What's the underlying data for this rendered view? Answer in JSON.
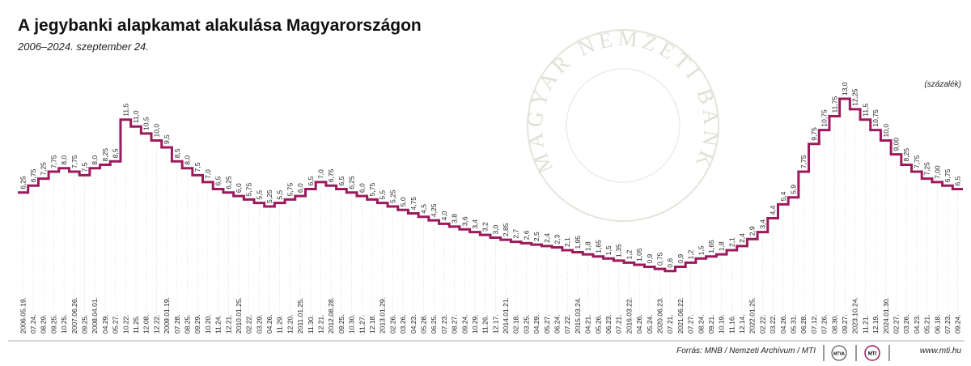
{
  "title": "A jegybanki alapkamat alakulása Magyarországon",
  "subtitle": "2006–2024. szeptember 24.",
  "unit": "(százalék)",
  "watermark": "MAGYAR NEMZETI BANK",
  "source": "Forrás: MNB / Nemzeti Archívum / MTI",
  "logos": [
    "MTVA",
    "MTI"
  ],
  "website": "www.mti.hu",
  "chart_data": {
    "type": "step",
    "color": "#9c1a5c",
    "categories": [
      "2006.05.19.",
      "07.24.",
      "08.29.",
      "09.25.",
      "10.25.",
      "2007.06.26.",
      "09.25.",
      "2008.04.01.",
      "04.29.",
      "05.27.",
      "10.22.",
      "11.25.",
      "12.08.",
      "12.22.",
      "2009.01.19.",
      "07.28.",
      "08.25.",
      "09.29.",
      "10.20.",
      "11.24.",
      "12.21.",
      "2010.01.25.",
      "02.22.",
      "03.29.",
      "04.26.",
      "11.29.",
      "12.20.",
      "2011.01.25.",
      "11.30.",
      "12.21.",
      "2012.08.28.",
      "09.25.",
      "10.30.",
      "11.27.",
      "12.18.",
      "2013.01.29.",
      "02.26.",
      "03.26.",
      "04.23.",
      "05.28.",
      "06.25.",
      "07.23.",
      "08.27.",
      "09.24.",
      "10.29.",
      "11.26.",
      "12.17.",
      "2014.01.21.",
      "02.18.",
      "03.25.",
      "04.29.",
      "05.27.",
      "06.24.",
      "07.22.",
      "2015.03.24.",
      "04.21.",
      "05.26.",
      "06.23.",
      "07.21.",
      "2016.03.22.",
      "04.26.",
      "05.24.",
      "2020.06.23.",
      "07.21.",
      "2021.06.22.",
      "07.27.",
      "08.24.",
      "09.21.",
      "10.19.",
      "11.16.",
      "12.14.",
      "2022.01.25.",
      "02.22.",
      "03.22.",
      "04.26.",
      "05.31.",
      "06.28.",
      "07.12.",
      "07.26.",
      "08.30.",
      "09.27.",
      "2023.10.24.",
      "11.21.",
      "12.19.",
      "2024.01.30.",
      "02.27.",
      "03.26.",
      "04.23.",
      "05.21.",
      "06.18.",
      "07.23.",
      "09.24."
    ],
    "values": [
      6.25,
      6.75,
      7.25,
      7.75,
      8.0,
      7.75,
      7.5,
      8.0,
      8.25,
      8.5,
      11.5,
      11.0,
      10.5,
      10.0,
      9.5,
      8.5,
      8.0,
      7.5,
      7.0,
      6.5,
      6.25,
      6.0,
      5.75,
      5.5,
      5.25,
      5.5,
      5.75,
      6.0,
      6.5,
      7.0,
      6.75,
      6.5,
      6.25,
      6.0,
      5.75,
      5.5,
      5.25,
      5.0,
      4.75,
      4.5,
      4.25,
      4.0,
      3.8,
      3.6,
      3.4,
      3.2,
      3.0,
      2.85,
      2.7,
      2.6,
      2.5,
      2.4,
      2.3,
      2.1,
      1.95,
      1.8,
      1.65,
      1.5,
      1.35,
      1.2,
      1.05,
      0.9,
      0.75,
      0.6,
      0.9,
      1.2,
      1.5,
      1.65,
      1.8,
      2.1,
      2.4,
      2.9,
      3.4,
      4.4,
      5.4,
      5.9,
      7.75,
      9.75,
      10.75,
      11.75,
      13.0,
      12.25,
      11.5,
      10.75,
      10.0,
      9.0,
      8.25,
      7.75,
      7.25,
      7.0,
      6.75,
      6.5
    ],
    "value_labels": [
      "6,25",
      "6,75",
      "7,25",
      "7,75",
      "8,0",
      "7,75",
      "7,5",
      "8,0",
      "8,25",
      "8,5",
      "11,5",
      "11,0",
      "10,5",
      "10,0",
      "9,5",
      "8,5",
      "8,0",
      "7,5",
      "7,0",
      "6,5",
      "6,25",
      "6,0",
      "5,75",
      "5,5",
      "5,25",
      "5,5",
      "5,75",
      "6,0",
      "6,5",
      "7,0",
      "6,75",
      "6,5",
      "6,25",
      "6,0",
      "5,75",
      "5,5",
      "5,25",
      "5,0",
      "4,75",
      "4,5",
      "4,25",
      "4,0",
      "3,8",
      "3,6",
      "3,4",
      "3,2",
      "3,0",
      "2,85",
      "2,7",
      "2,6",
      "2,5",
      "2,4",
      "2,3",
      "2,1",
      "1,95",
      "1,8",
      "1,65",
      "1,5",
      "1,35",
      "1,2",
      "1,05",
      "0,9",
      "0,75",
      "0,6",
      "0,9",
      "1,2",
      "1,5",
      "1,65",
      "1,8",
      "2,1",
      "2,4",
      "2,9",
      "3,4",
      "4,4",
      "5,4",
      "5,9",
      "7,75",
      "9,75",
      "10,75",
      "11,75",
      "13,0",
      "12,25",
      "11,5",
      "10,75",
      "10,0",
      "9,00",
      "8,25",
      "7,75",
      "7,25",
      "7,00",
      "6,75",
      "6,5"
    ]
  }
}
